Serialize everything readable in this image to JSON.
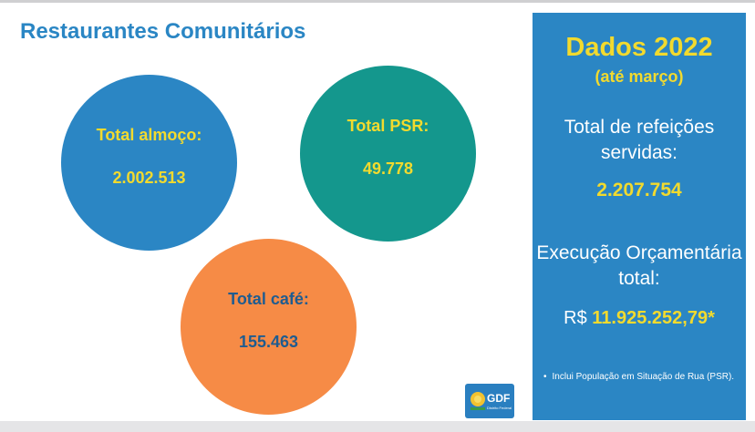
{
  "title": "Restaurantes Comunitários",
  "circles": [
    {
      "label": "Total almoço:",
      "value": "2.002.513",
      "color": "#2b86c4"
    },
    {
      "label": "Total PSR:",
      "value": "49.778",
      "color": "#14978d"
    },
    {
      "label": "Total café:",
      "value": "155.463",
      "color": "#f68b46"
    }
  ],
  "panel": {
    "year": "Dados 2022",
    "subtitle": "(até março)",
    "meals_label": "Total de refeições servidas:",
    "meals_value": "2.207.754",
    "budget_label": "Execução Orçamentária total:",
    "currency": "R$",
    "budget_value": "11.925.252,79*",
    "note": "Inclui População em Situação de Rua (PSR).",
    "note_bullet": "•"
  },
  "logo": {
    "text": "GDF",
    "subtext": "Distrito Federal",
    "icon": "gdf-logo-icon",
    "color": "#2a7fc0"
  },
  "colors": {
    "accent_blue": "#2b86c4",
    "teal": "#14978d",
    "orange": "#f68b46",
    "yellow": "#f2da2e"
  }
}
